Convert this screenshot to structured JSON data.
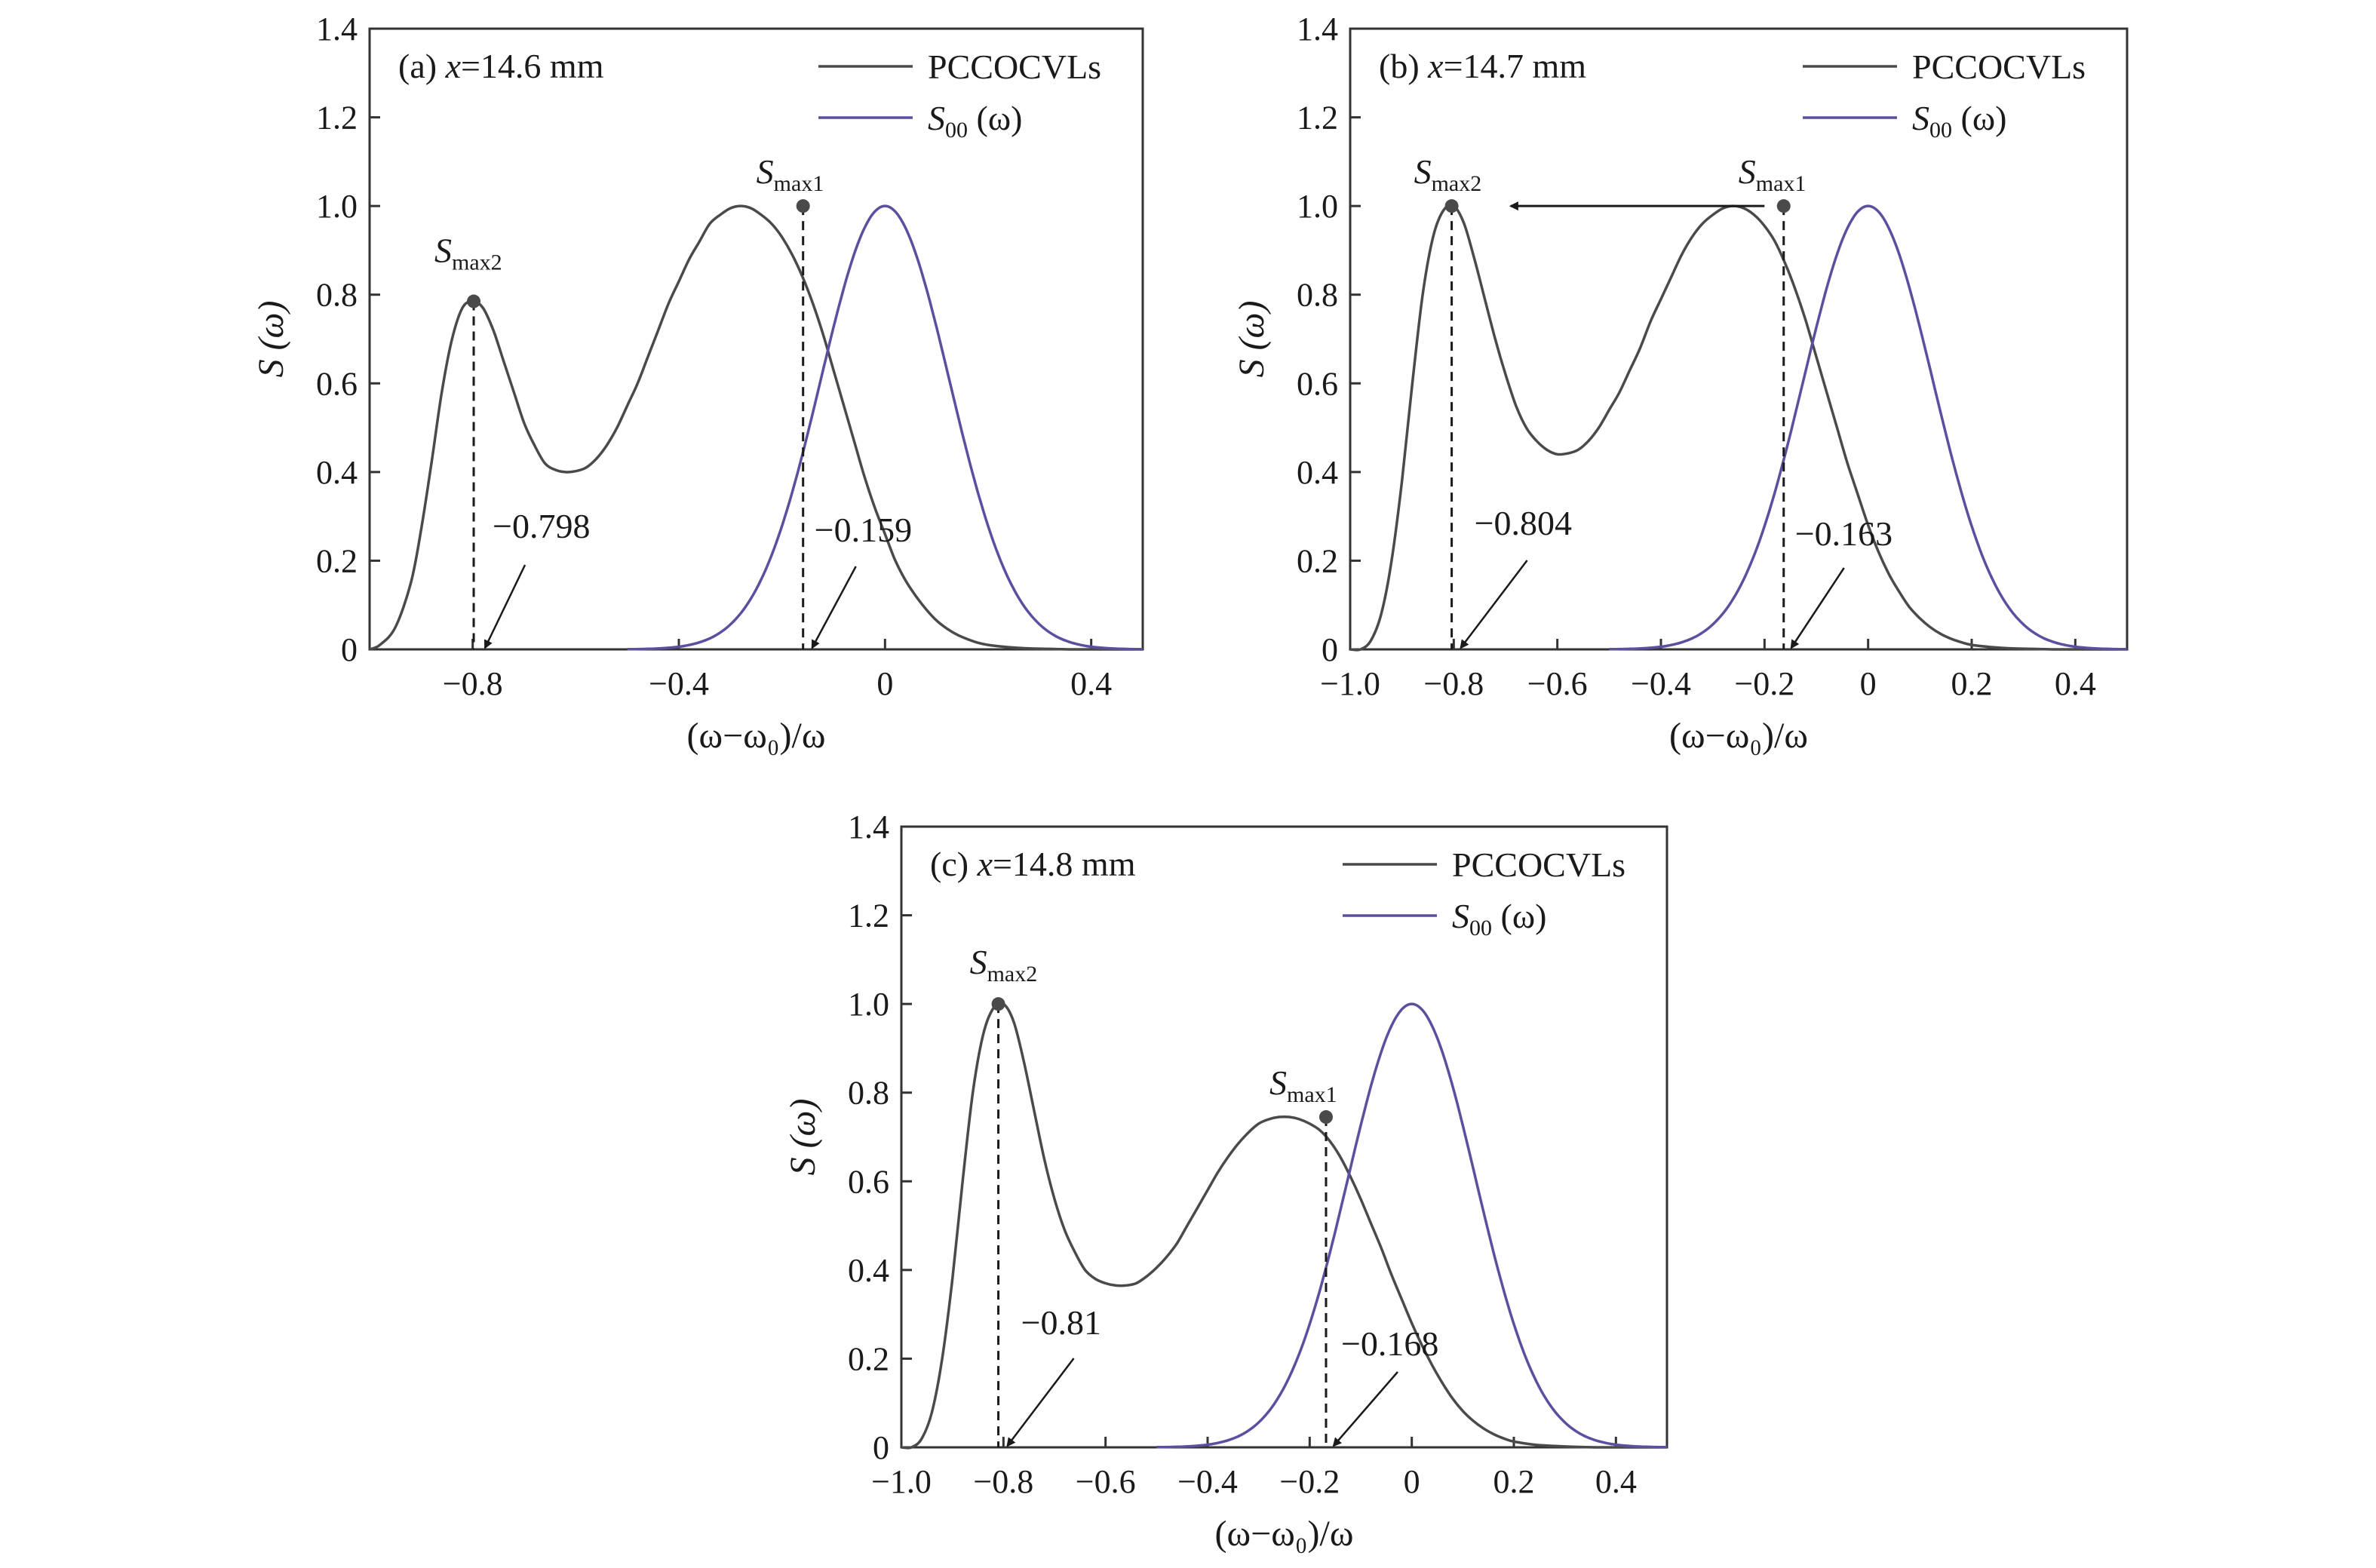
{
  "figure": {
    "background": "#ffffff"
  },
  "chart_data": [
    {
      "id": "a",
      "type": "line",
      "panel_label": "(a) ",
      "panel_var": "x",
      "panel_value": "=14.6 mm",
      "xlabel": "(ω−ω₀)/ω",
      "ylabel": "S (ω)",
      "xlim": [
        -1.0,
        0.5
      ],
      "ylim": [
        0,
        1.4
      ],
      "xticks": [
        -0.8,
        -0.4,
        0,
        0.4
      ],
      "xtick_labels": [
        "−0.8",
        "−0.4",
        "0",
        "0.4"
      ],
      "yticks": [
        0,
        0.2,
        0.4,
        0.6,
        0.8,
        1.0,
        1.2,
        1.4
      ],
      "ytick_labels": [
        "0",
        "0.2",
        "0.4",
        "0.6",
        "0.8",
        "1.0",
        "1.2",
        "1.4"
      ],
      "legend_position": "top-right",
      "series": [
        {
          "name": "PCCOCVLs",
          "color": "#4a4a4a",
          "x": [
            -1.0,
            -0.98,
            -0.95,
            -0.92,
            -0.9,
            -0.88,
            -0.86,
            -0.84,
            -0.82,
            -0.8,
            -0.78,
            -0.76,
            -0.74,
            -0.72,
            -0.7,
            -0.68,
            -0.66,
            -0.64,
            -0.62,
            -0.6,
            -0.58,
            -0.56,
            -0.54,
            -0.52,
            -0.5,
            -0.48,
            -0.46,
            -0.44,
            -0.42,
            -0.4,
            -0.38,
            -0.36,
            -0.34,
            -0.32,
            -0.3,
            -0.28,
            -0.26,
            -0.24,
            -0.22,
            -0.2,
            -0.18,
            -0.16,
            -0.14,
            -0.12,
            -0.1,
            -0.08,
            -0.06,
            -0.04,
            -0.02,
            0,
            0.02,
            0.04,
            0.06,
            0.08,
            0.1,
            0.12,
            0.14,
            0.16,
            0.18,
            0.2,
            0.24,
            0.28,
            0.32,
            0.36,
            0.4,
            0.45,
            0.5
          ],
          "values": [
            0.0,
            0.01,
            0.05,
            0.15,
            0.27,
            0.42,
            0.58,
            0.7,
            0.77,
            0.785,
            0.77,
            0.72,
            0.65,
            0.58,
            0.51,
            0.46,
            0.42,
            0.405,
            0.4,
            0.402,
            0.41,
            0.43,
            0.46,
            0.5,
            0.55,
            0.6,
            0.66,
            0.72,
            0.78,
            0.83,
            0.88,
            0.92,
            0.96,
            0.98,
            0.995,
            1.0,
            0.995,
            0.98,
            0.96,
            0.93,
            0.89,
            0.84,
            0.78,
            0.71,
            0.63,
            0.55,
            0.47,
            0.39,
            0.32,
            0.26,
            0.2,
            0.155,
            0.12,
            0.09,
            0.065,
            0.047,
            0.033,
            0.023,
            0.015,
            0.01,
            0.005,
            0.002,
            0.001,
            0.0,
            0.0,
            0.0,
            0.0
          ]
        },
        {
          "name": "S₀₀ (ω)",
          "name_main": "S",
          "name_sub": "00",
          "name_tail": " (ω)",
          "color": "#5b4fa0",
          "gaussian": {
            "center": 0,
            "sigma": 0.125,
            "amplitude": 1.0
          },
          "x_range": [
            -0.5,
            0.5
          ]
        }
      ],
      "peaks": [
        {
          "label_main": "S",
          "label_sub": "max2",
          "x": -0.798,
          "y": 0.785,
          "value_label": "−0.798",
          "series": 0
        },
        {
          "label_main": "S",
          "label_sub": "max1",
          "x": -0.159,
          "y": 1.0,
          "value_label": "−0.159",
          "series": 0
        }
      ]
    },
    {
      "id": "b",
      "type": "line",
      "panel_label": "(b) ",
      "panel_var": "x",
      "panel_value": "=14.7 mm",
      "xlabel": "(ω−ω₀)/ω",
      "ylabel": "S (ω)",
      "xlim": [
        -1.0,
        0.5
      ],
      "ylim": [
        0,
        1.4
      ],
      "xticks": [
        -1.0,
        -0.8,
        -0.6,
        -0.4,
        -0.2,
        0,
        0.2,
        0.4
      ],
      "xtick_labels": [
        "−1.0",
        "−0.8",
        "−0.6",
        "−0.4",
        "−0.2",
        "0",
        "0.2",
        "0.4"
      ],
      "yticks": [
        0,
        0.2,
        0.4,
        0.6,
        0.8,
        1.0,
        1.2,
        1.4
      ],
      "ytick_labels": [
        "0",
        "0.2",
        "0.4",
        "0.6",
        "0.8",
        "1.0",
        "1.2",
        "1.4"
      ],
      "legend_position": "top-right",
      "series": [
        {
          "name": "PCCOCVLs",
          "color": "#4a4a4a",
          "x": [
            -1.0,
            -0.98,
            -0.96,
            -0.94,
            -0.92,
            -0.9,
            -0.88,
            -0.86,
            -0.84,
            -0.82,
            -0.8,
            -0.78,
            -0.76,
            -0.74,
            -0.72,
            -0.7,
            -0.68,
            -0.66,
            -0.64,
            -0.62,
            -0.6,
            -0.58,
            -0.56,
            -0.54,
            -0.52,
            -0.5,
            -0.48,
            -0.46,
            -0.44,
            -0.42,
            -0.4,
            -0.38,
            -0.36,
            -0.34,
            -0.32,
            -0.3,
            -0.28,
            -0.26,
            -0.24,
            -0.22,
            -0.2,
            -0.18,
            -0.16,
            -0.14,
            -0.12,
            -0.1,
            -0.08,
            -0.06,
            -0.04,
            -0.02,
            0,
            0.02,
            0.04,
            0.06,
            0.08,
            0.1,
            0.12,
            0.14,
            0.16,
            0.18,
            0.2,
            0.24,
            0.28,
            0.32,
            0.36,
            0.4,
            0.45,
            0.5
          ],
          "values": [
            0.0,
            0.0,
            0.02,
            0.08,
            0.2,
            0.38,
            0.6,
            0.8,
            0.93,
            0.99,
            1.0,
            0.96,
            0.88,
            0.79,
            0.7,
            0.62,
            0.55,
            0.5,
            0.47,
            0.45,
            0.44,
            0.442,
            0.45,
            0.47,
            0.5,
            0.54,
            0.58,
            0.63,
            0.68,
            0.74,
            0.79,
            0.84,
            0.89,
            0.93,
            0.96,
            0.98,
            0.995,
            1.0,
            0.995,
            0.98,
            0.955,
            0.92,
            0.87,
            0.81,
            0.74,
            0.66,
            0.58,
            0.5,
            0.42,
            0.35,
            0.28,
            0.22,
            0.17,
            0.13,
            0.095,
            0.07,
            0.05,
            0.035,
            0.024,
            0.016,
            0.01,
            0.005,
            0.002,
            0.001,
            0.0,
            0.0,
            0.0,
            0.0
          ]
        },
        {
          "name": "S₀₀ (ω)",
          "name_main": "S",
          "name_sub": "00",
          "name_tail": " (ω)",
          "color": "#5b4fa0",
          "gaussian": {
            "center": 0,
            "sigma": 0.125,
            "amplitude": 1.0
          },
          "x_range": [
            -0.5,
            0.5
          ]
        }
      ],
      "peaks": [
        {
          "label_main": "S",
          "label_sub": "max2",
          "x": -0.804,
          "y": 1.0,
          "value_label": "−0.804",
          "series": 0
        },
        {
          "label_main": "S",
          "label_sub": "max1",
          "x": -0.163,
          "y": 1.0,
          "value_label": "−0.163",
          "series": 0
        }
      ],
      "shift_arrow": {
        "from_x": -0.2,
        "to_x": -0.69,
        "y": 1.0
      }
    },
    {
      "id": "c",
      "type": "line",
      "panel_label": "(c) ",
      "panel_var": "x",
      "panel_value": "=14.8 mm",
      "xlabel": "(ω−ω₀)/ω",
      "ylabel": "S (ω)",
      "xlim": [
        -1.0,
        0.5
      ],
      "ylim": [
        0,
        1.4
      ],
      "xticks": [
        -1.0,
        -0.8,
        -0.6,
        -0.4,
        -0.2,
        0,
        0.2,
        0.4
      ],
      "xtick_labels": [
        "−1.0",
        "−0.8",
        "−0.6",
        "−0.4",
        "−0.2",
        "0",
        "0.2",
        "0.4"
      ],
      "yticks": [
        0,
        0.2,
        0.4,
        0.6,
        0.8,
        1.0,
        1.2,
        1.4
      ],
      "ytick_labels": [
        "0",
        "0.2",
        "0.4",
        "0.6",
        "0.8",
        "1.0",
        "1.2",
        "1.4"
      ],
      "legend_position": "top-right",
      "series": [
        {
          "name": "PCCOCVLs",
          "color": "#4a4a4a",
          "x": [
            -1.0,
            -0.98,
            -0.96,
            -0.94,
            -0.92,
            -0.9,
            -0.88,
            -0.86,
            -0.84,
            -0.82,
            -0.8,
            -0.78,
            -0.76,
            -0.74,
            -0.72,
            -0.7,
            -0.68,
            -0.66,
            -0.64,
            -0.62,
            -0.6,
            -0.58,
            -0.56,
            -0.54,
            -0.52,
            -0.5,
            -0.48,
            -0.46,
            -0.44,
            -0.42,
            -0.4,
            -0.38,
            -0.36,
            -0.34,
            -0.32,
            -0.3,
            -0.28,
            -0.26,
            -0.24,
            -0.22,
            -0.2,
            -0.18,
            -0.16,
            -0.14,
            -0.12,
            -0.1,
            -0.08,
            -0.06,
            -0.04,
            -0.02,
            0,
            0.02,
            0.04,
            0.06,
            0.08,
            0.1,
            0.12,
            0.14,
            0.16,
            0.18,
            0.2,
            0.24,
            0.28,
            0.32,
            0.36,
            0.4,
            0.45,
            0.5
          ],
          "values": [
            0.0,
            0.0,
            0.02,
            0.08,
            0.2,
            0.38,
            0.6,
            0.8,
            0.93,
            0.99,
            1.0,
            0.96,
            0.87,
            0.76,
            0.65,
            0.56,
            0.49,
            0.44,
            0.4,
            0.38,
            0.37,
            0.365,
            0.365,
            0.37,
            0.385,
            0.405,
            0.43,
            0.46,
            0.5,
            0.54,
            0.58,
            0.62,
            0.655,
            0.685,
            0.71,
            0.73,
            0.74,
            0.745,
            0.745,
            0.74,
            0.73,
            0.715,
            0.69,
            0.655,
            0.61,
            0.56,
            0.505,
            0.45,
            0.39,
            0.335,
            0.28,
            0.23,
            0.185,
            0.145,
            0.11,
            0.082,
            0.06,
            0.043,
            0.03,
            0.02,
            0.013,
            0.006,
            0.003,
            0.001,
            0.0,
            0.0,
            0.0,
            0.0
          ]
        },
        {
          "name": "S₀₀ (ω)",
          "name_main": "S",
          "name_sub": "00",
          "name_tail": " (ω)",
          "color": "#5b4fa0",
          "gaussian": {
            "center": 0,
            "sigma": 0.125,
            "amplitude": 1.0
          },
          "x_range": [
            -0.5,
            0.5
          ]
        }
      ],
      "peaks": [
        {
          "label_main": "S",
          "label_sub": "max2",
          "x": -0.81,
          "y": 1.0,
          "value_label": "−0.81",
          "series": 0
        },
        {
          "label_main": "S",
          "label_sub": "max1",
          "x": -0.168,
          "y": 0.745,
          "value_label": "−0.168",
          "series": 0
        }
      ]
    }
  ]
}
